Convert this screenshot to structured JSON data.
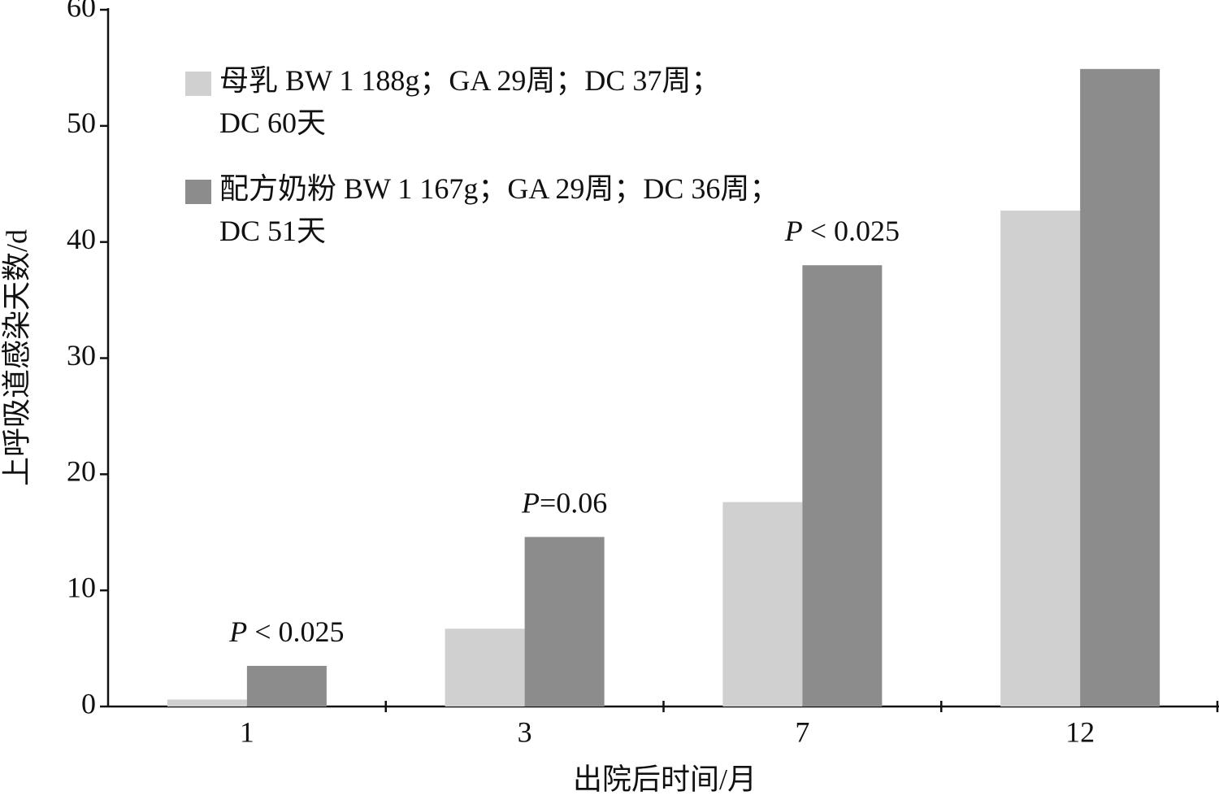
{
  "chart_data": {
    "type": "bar",
    "x_label": "出院后时间/月",
    "y_label": "上呼吸道感染天数/d",
    "categories": [
      "1",
      "3",
      "7",
      "12"
    ],
    "series": [
      {
        "name": "母乳 BW 1 188g；GA 29周；DC 37周；\nDC 60天",
        "color": "#d0d0d0",
        "values": [
          0.6,
          6.7,
          17.6,
          42.7
        ]
      },
      {
        "name": "配方奶粉 BW 1 167g；GA 29周；DC 36周；\nDC 51天",
        "color": "#8c8c8c",
        "values": [
          3.5,
          14.6,
          38.0,
          54.9
        ]
      }
    ],
    "annotations": [
      {
        "x": "1",
        "parts": [
          "P",
          " < 0.025"
        ]
      },
      {
        "x": "3",
        "parts": [
          "P",
          "=0.06"
        ]
      },
      {
        "x": "7",
        "parts": [
          "P",
          " < 0.025"
        ]
      }
    ],
    "ylim": [
      0,
      60
    ],
    "yticks": [
      0,
      10,
      20,
      30,
      40,
      50,
      60
    ],
    "grid": false
  }
}
